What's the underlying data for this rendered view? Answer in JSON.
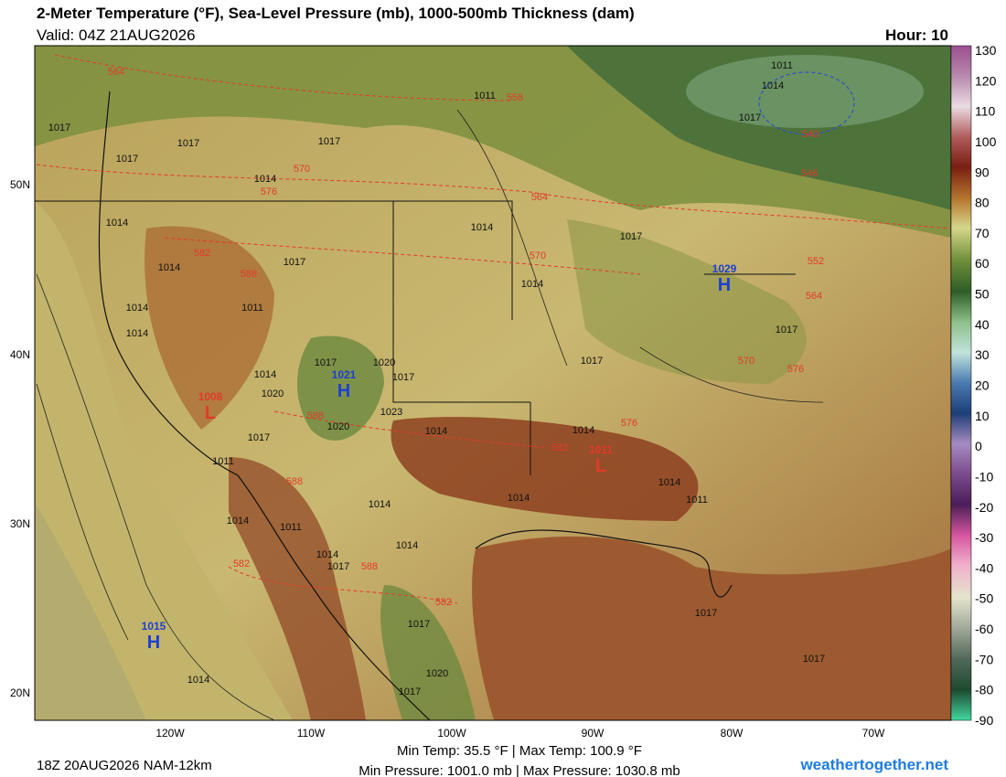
{
  "header": {
    "title": "2-Meter Temperature (°F), Sea-Level Pressure (mb), 1000-500mb Thickness (dam)",
    "valid": "Valid: 04Z 21AUG2026",
    "hour": "Hour: 10"
  },
  "colorbar": {
    "labels": [
      "130",
      "120",
      "110",
      "100",
      "90",
      "80",
      "70",
      "60",
      "50",
      "40",
      "30",
      "20",
      "10",
      "0",
      "-10",
      "-20",
      "-30",
      "-40",
      "-50",
      "-60",
      "-70",
      "-80",
      "-90"
    ]
  },
  "axes": {
    "latitudes": [
      "50N",
      "40N",
      "30N",
      "20N"
    ],
    "longitudes": [
      "120W",
      "110W",
      "100W",
      "90W",
      "80W",
      "70W"
    ]
  },
  "map": {
    "pressure_labels": [
      "1011",
      "1014",
      "1011",
      "1017",
      "1017",
      "1017",
      "1017",
      "1017",
      "1014",
      "1014",
      "1017",
      "1014",
      "1017",
      "1014",
      "1014",
      "1011",
      "1014",
      "1014",
      "1020",
      "1017",
      "1020",
      "1017",
      "1023",
      "1020",
      "1017",
      "1014",
      "1014",
      "1017",
      "1017",
      "1011",
      "1014",
      "1014",
      "1014",
      "1011",
      "1014",
      "1011",
      "1014",
      "1017",
      "1014",
      "1017",
      "1020",
      "1017",
      "1017",
      "1017",
      "1014",
      "1014"
    ],
    "thickness_labels": [
      "564",
      "558",
      "570",
      "576",
      "564",
      "546",
      "540",
      "570",
      "582",
      "588",
      "552",
      "564",
      "570",
      "576",
      "576",
      "588",
      "582",
      "588",
      "582",
      "588",
      "582"
    ],
    "centers": [
      {
        "letter": "H",
        "value": "1015"
      },
      {
        "letter": "H",
        "value": "1021"
      },
      {
        "letter": "H",
        "value": "1029"
      },
      {
        "letter": "L",
        "value": "1008"
      },
      {
        "letter": "L",
        "value": "1011"
      }
    ]
  },
  "footer": {
    "run": "18Z 20AUG2026 NAM-12km",
    "temp_range": "Min Temp:  35.5 °F | Max Temp: 100.9 °F",
    "pressure_range": "Min Pressure: 1001.0 mb | Max Pressure: 1030.8 mb",
    "site": "weathertogether.net"
  }
}
